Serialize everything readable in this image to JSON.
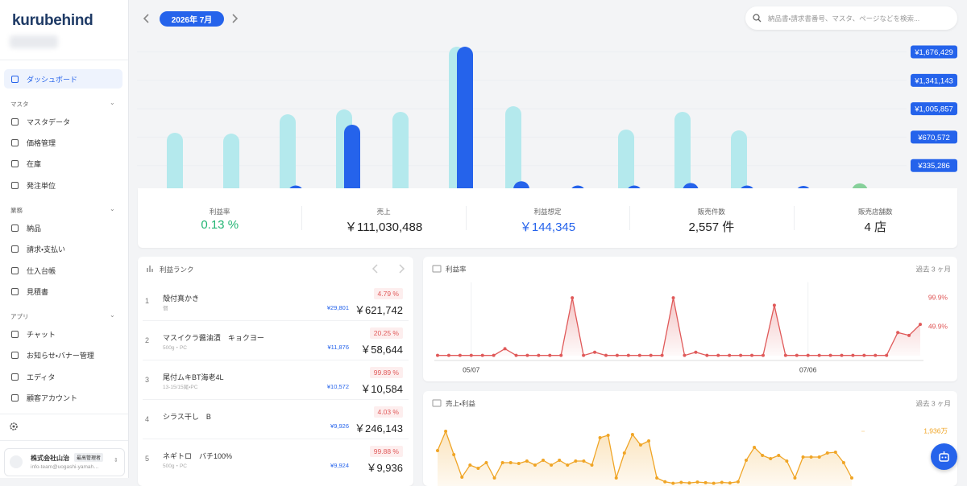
{
  "header": {
    "month": "2026年 7月",
    "search_placeholder": "納品書・請求書番号、マスタ、ページなどを検索..."
  },
  "sidebar": {
    "logo": "kurubehind",
    "home": "ダッシュボード",
    "sections": [
      {
        "title": "マスタ",
        "items": [
          "マスタデータ",
          "価格管理",
          "在庫",
          "発注単位"
        ]
      },
      {
        "title": "業務",
        "items": [
          "納品",
          "請求・支払い",
          "仕入台帳",
          "見積書"
        ]
      },
      {
        "title": "アプリ",
        "items": [
          "チャット",
          "お知らせ・バナー管理",
          "エディタ",
          "顧客アカウント"
        ]
      }
    ],
    "user": {
      "company": "株式会社山治",
      "role": "最高管理者",
      "email": "info-team@uogashi-yamah…"
    }
  },
  "stats": [
    {
      "label": "利益率",
      "value": "0.13 %",
      "color": "#22b573"
    },
    {
      "label": "売上",
      "value": "￥111,030,488"
    },
    {
      "label": "利益想定",
      "value": "￥144,345",
      "color": "#2563eb"
    },
    {
      "label": "販売件数",
      "value": "2,557 件"
    },
    {
      "label": "販売店舗数",
      "value": "4 店"
    }
  ],
  "ranking": {
    "title": "利益ランク",
    "items": [
      {
        "rank": 1,
        "name": "殻付真かき",
        "detail": "個",
        "rate": "4.79 %",
        "profit": "¥29,801",
        "sales": "￥621,742"
      },
      {
        "rank": 2,
        "name": "マスイクラ醤油漬　キョクヨー",
        "detail": "500g・PC",
        "rate": "20.25 %",
        "profit": "¥11,876",
        "sales": "￥58,644"
      },
      {
        "rank": 3,
        "name": "尾付ムキBT海老4L",
        "detail": "13-15/15尾・PC",
        "rate": "99.89 %",
        "profit": "¥10,572",
        "sales": "￥10,584"
      },
      {
        "rank": 4,
        "name": "シラス干し　B",
        "rate": "4.03 %",
        "profit": "¥9,926",
        "sales": "￥246,143"
      },
      {
        "rank": 5,
        "name": "ネギトロ　バチ100%",
        "detail": "500g・PC",
        "rate": "99.88 %",
        "profit": "¥9,924",
        "sales": "￥9,936"
      }
    ]
  },
  "chart_data": [
    {
      "type": "bar",
      "categories": [
        null,
        null,
        null,
        null,
        null,
        null,
        null,
        null,
        null,
        null,
        null,
        null,
        null
      ],
      "series": [
        {
          "color": "#b4e9ed",
          "values": [
            722000,
            712000,
            940000,
            997000,
            969000,
            1738000,
            1035000,
            null,
            760000,
            969000,
            750000,
            null,
            null
          ]
        },
        {
          "color": "#2563eb",
          "values": [
            null,
            null,
            100000,
            817000,
            20000,
            1738000,
            150000,
            100000,
            100000,
            130000,
            100000,
            95000,
            null
          ]
        },
        {
          "color": "#86d09a",
          "values": [
            null,
            null,
            null,
            null,
            null,
            null,
            null,
            null,
            null,
            null,
            null,
            null,
            125000
          ]
        }
      ],
      "ylim": [
        0,
        1900000
      ],
      "yticks": [
        {
          "value": 335286,
          "label": "¥335,286"
        },
        {
          "value": 670572,
          "label": "¥670,572"
        },
        {
          "value": 1005857,
          "label": "¥1,005,857"
        },
        {
          "value": 1341143,
          "label": "¥1,341,143"
        },
        {
          "value": 1676429,
          "label": "¥1,676,429"
        }
      ],
      "grid": true
    },
    {
      "type": "line",
      "title": "利益率",
      "period": "過去 3 ヶ月",
      "color": "#e05a5a",
      "categories": [
        null,
        null,
        null,
        "05/07",
        null,
        null,
        null,
        null,
        null,
        null,
        null,
        null,
        null,
        null,
        null,
        null,
        null,
        null,
        null,
        null,
        null,
        null,
        null,
        null,
        null,
        null,
        null,
        null,
        null,
        null,
        null,
        null,
        null,
        "07/06",
        null,
        null,
        null,
        null,
        null,
        null,
        null,
        null,
        null,
        null
      ],
      "values": [
        0.5,
        0.5,
        0.5,
        0.5,
        0.5,
        0.5,
        12,
        0.5,
        0.5,
        0.5,
        0.5,
        0.5,
        99.9,
        0.5,
        6,
        0.5,
        0.5,
        0.5,
        0.5,
        0.5,
        0.5,
        99.9,
        0.5,
        6,
        0.5,
        0.5,
        0.5,
        0.5,
        0.5,
        0.5,
        87,
        0.5,
        0.5,
        0.5,
        0.5,
        0.5,
        0.5,
        0.5,
        0.5,
        0.5,
        0.5,
        40,
        35,
        54
      ],
      "ylim": [
        -4,
        120
      ],
      "yticks": [
        {
          "value": 49.9,
          "label": "49.9%"
        },
        {
          "value": 99.9,
          "label": "99.9%"
        }
      ]
    },
    {
      "type": "line",
      "title": "売上・利益",
      "period": "過去 3 ヶ月",
      "color": "#f0a526",
      "categories": [
        null,
        null,
        null,
        null,
        null,
        null,
        null,
        null,
        null,
        null,
        null,
        null,
        null,
        null,
        null,
        null,
        null,
        null,
        null,
        null,
        null,
        null,
        null,
        null,
        null,
        null,
        null,
        null,
        null,
        null,
        null,
        null,
        null,
        null,
        null,
        null,
        null,
        null,
        null,
        null,
        null,
        null,
        null,
        null,
        null,
        null,
        null,
        null,
        null,
        null,
        null,
        null
      ],
      "values": [
        1291,
        1936,
        1157,
        403,
        807,
        699,
        888,
        377,
        888,
        888,
        861,
        942,
        807,
        968,
        807,
        968,
        807,
        942,
        942,
        807,
        1722,
        1802,
        377,
        1211,
        1829,
        1480,
        1614,
        377,
        250,
        200,
        230,
        210,
        240,
        220,
        200,
        230,
        210,
        250,
        968,
        1399,
        1130,
        1022,
        1130,
        942,
        377,
        1076,
        1076,
        1076,
        1211,
        1237,
        888,
        377
      ],
      "ylim": [
        0,
        2300
      ],
      "yticks": [
        {
          "value": 1936,
          "label": "1,936万"
        }
      ]
    }
  ]
}
